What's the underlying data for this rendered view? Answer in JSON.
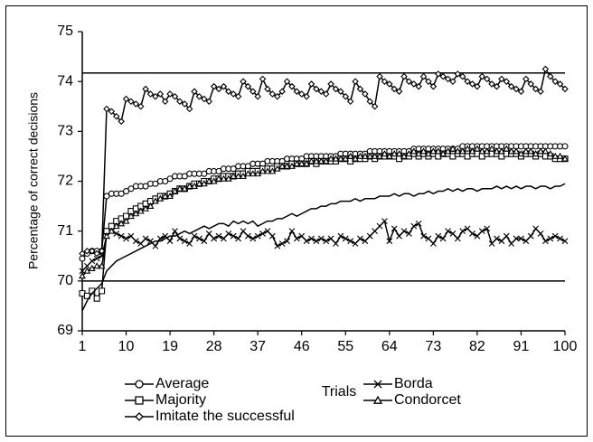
{
  "chart_data": {
    "type": "line",
    "y_label": "Percentage of correct decisions",
    "x_label": "Trials",
    "x": [
      1,
      2,
      3,
      4,
      5,
      6,
      7,
      8,
      9,
      10,
      11,
      12,
      13,
      14,
      15,
      16,
      17,
      18,
      19,
      20,
      21,
      22,
      23,
      24,
      25,
      26,
      27,
      28,
      29,
      30,
      31,
      32,
      33,
      34,
      35,
      36,
      37,
      38,
      39,
      40,
      41,
      42,
      43,
      44,
      45,
      46,
      47,
      48,
      49,
      50,
      51,
      52,
      53,
      54,
      55,
      56,
      57,
      58,
      59,
      60,
      61,
      62,
      63,
      64,
      65,
      66,
      67,
      68,
      69,
      70,
      71,
      72,
      73,
      74,
      75,
      76,
      77,
      78,
      79,
      80,
      81,
      82,
      83,
      84,
      85,
      86,
      87,
      88,
      89,
      90,
      91,
      92,
      93,
      94,
      95,
      96,
      97,
      98,
      99,
      100
    ],
    "xlim": [
      1,
      100
    ],
    "xticks": [
      1,
      10,
      19,
      28,
      37,
      46,
      55,
      64,
      73,
      82,
      91,
      100
    ],
    "ylim": [
      69,
      75
    ],
    "yticks": [
      69,
      70,
      71,
      72,
      73,
      74,
      75
    ],
    "hlines": [
      74.17,
      70
    ],
    "series": [
      {
        "name": "Average",
        "marker": "circle",
        "color": "#000000",
        "values": [
          70.45,
          70.55,
          70.6,
          70.6,
          70.6,
          71.7,
          71.75,
          71.75,
          71.75,
          71.8,
          71.85,
          71.9,
          71.9,
          71.9,
          71.95,
          71.95,
          72.0,
          72.0,
          72.05,
          72.1,
          72.1,
          72.1,
          72.15,
          72.15,
          72.15,
          72.15,
          72.2,
          72.2,
          72.2,
          72.25,
          72.25,
          72.25,
          72.3,
          72.3,
          72.3,
          72.35,
          72.35,
          72.35,
          72.4,
          72.4,
          72.4,
          72.4,
          72.45,
          72.45,
          72.45,
          72.45,
          72.5,
          72.5,
          72.5,
          72.5,
          72.5,
          72.5,
          72.5,
          72.55,
          72.55,
          72.55,
          72.55,
          72.55,
          72.55,
          72.6,
          72.6,
          72.6,
          72.6,
          72.6,
          72.6,
          72.6,
          72.6,
          72.6,
          72.65,
          72.65,
          72.65,
          72.65,
          72.65,
          72.65,
          72.65,
          72.65,
          72.65,
          72.65,
          72.7,
          72.7,
          72.7,
          72.7,
          72.7,
          72.7,
          72.7,
          72.7,
          72.7,
          72.7,
          72.7,
          72.7,
          72.7,
          72.7,
          72.7,
          72.7,
          72.7,
          72.7,
          72.7,
          72.7,
          72.7,
          72.7
        ]
      },
      {
        "name": "Borda",
        "marker": "x",
        "color": "#000000",
        "values": [
          70.2,
          70.3,
          70.4,
          70.45,
          70.5,
          70.9,
          71.0,
          70.95,
          70.9,
          70.85,
          70.9,
          70.8,
          70.75,
          70.85,
          70.8,
          70.7,
          70.85,
          70.9,
          70.8,
          71.0,
          70.85,
          70.8,
          70.75,
          70.9,
          70.85,
          70.8,
          70.95,
          70.85,
          70.9,
          70.85,
          70.95,
          70.9,
          70.85,
          71.0,
          70.9,
          70.85,
          70.9,
          70.95,
          71.0,
          70.9,
          70.7,
          70.75,
          70.8,
          71.0,
          70.85,
          70.9,
          70.8,
          70.85,
          70.8,
          70.85,
          70.8,
          70.85,
          70.75,
          70.9,
          70.85,
          70.8,
          70.75,
          70.85,
          70.8,
          70.9,
          71.0,
          71.1,
          71.2,
          70.8,
          71.05,
          70.9,
          71.0,
          70.95,
          71.1,
          71.15,
          70.9,
          70.85,
          70.75,
          70.9,
          70.85,
          71.0,
          70.95,
          70.85,
          71.0,
          71.05,
          70.95,
          70.9,
          71.0,
          71.05,
          70.75,
          70.85,
          70.8,
          70.9,
          70.75,
          70.85,
          70.85,
          70.8,
          70.9,
          71.05,
          70.95,
          70.8,
          70.85,
          70.9,
          70.85,
          70.8
        ]
      },
      {
        "name": "Majority",
        "marker": "square",
        "color": "#000000",
        "values": [
          69.75,
          69.7,
          69.8,
          69.65,
          69.8,
          71.0,
          71.1,
          71.2,
          71.25,
          71.3,
          71.4,
          71.45,
          71.5,
          71.55,
          71.6,
          71.65,
          71.7,
          71.7,
          71.75,
          71.8,
          71.85,
          71.85,
          71.9,
          71.95,
          71.95,
          72.0,
          72.0,
          72.05,
          72.05,
          72.1,
          72.1,
          72.1,
          72.15,
          72.15,
          72.2,
          72.2,
          72.2,
          72.25,
          72.25,
          72.25,
          72.3,
          72.3,
          72.3,
          72.35,
          72.35,
          72.35,
          72.35,
          72.4,
          72.35,
          72.4,
          72.4,
          72.4,
          72.4,
          72.45,
          72.45,
          72.4,
          72.45,
          72.45,
          72.45,
          72.5,
          72.45,
          72.5,
          72.5,
          72.5,
          72.5,
          72.45,
          72.5,
          72.5,
          72.55,
          72.5,
          72.55,
          72.5,
          72.55,
          72.5,
          72.55,
          72.55,
          72.5,
          72.55,
          72.55,
          72.5,
          72.55,
          72.55,
          72.5,
          72.55,
          72.55,
          72.55,
          72.5,
          72.55,
          72.55,
          72.55,
          72.5,
          72.55,
          72.55,
          72.5,
          72.55,
          72.5,
          72.5,
          72.45,
          72.45,
          72.45
        ]
      },
      {
        "name": "Condorcet",
        "marker": "triangle",
        "color": "#000000",
        "values": [
          70.1,
          70.2,
          70.25,
          70.3,
          70.3,
          70.9,
          71.0,
          71.1,
          71.15,
          71.2,
          71.3,
          71.35,
          71.4,
          71.45,
          71.5,
          71.6,
          71.65,
          71.7,
          71.7,
          71.8,
          71.85,
          71.85,
          71.9,
          71.9,
          71.95,
          71.95,
          72.0,
          72.0,
          72.05,
          72.05,
          72.05,
          72.1,
          72.1,
          72.1,
          72.15,
          72.15,
          72.15,
          72.2,
          72.2,
          72.2,
          72.25,
          72.3,
          72.3,
          72.3,
          72.35,
          72.35,
          72.35,
          72.4,
          72.4,
          72.4,
          72.4,
          72.45,
          72.45,
          72.45,
          72.45,
          72.5,
          72.45,
          72.5,
          72.5,
          72.5,
          72.5,
          72.5,
          72.55,
          72.5,
          72.55,
          72.55,
          72.5,
          72.55,
          72.6,
          72.55,
          72.6,
          72.55,
          72.6,
          72.6,
          72.55,
          72.6,
          72.65,
          72.6,
          72.6,
          72.65,
          72.6,
          72.65,
          72.6,
          72.6,
          72.65,
          72.6,
          72.6,
          72.65,
          72.6,
          72.6,
          72.55,
          72.6,
          72.6,
          72.55,
          72.6,
          72.6,
          72.55,
          72.5,
          72.5,
          72.45
        ]
      },
      {
        "name": "Imitate the successful",
        "marker": "diamond",
        "color": "#000000",
        "values": [
          70.55,
          70.6,
          70.6,
          70.55,
          70.6,
          73.45,
          73.4,
          73.3,
          73.2,
          73.65,
          73.6,
          73.55,
          73.5,
          73.85,
          73.75,
          73.7,
          73.75,
          73.6,
          73.75,
          73.7,
          73.6,
          73.55,
          73.45,
          73.8,
          73.7,
          73.65,
          73.6,
          73.9,
          73.85,
          73.9,
          73.8,
          73.75,
          73.7,
          74.0,
          73.9,
          73.8,
          73.7,
          74.05,
          73.85,
          73.75,
          73.7,
          73.8,
          74.0,
          73.9,
          73.8,
          73.75,
          73.7,
          73.95,
          73.85,
          73.8,
          73.75,
          73.95,
          73.85,
          73.8,
          73.7,
          73.6,
          74.0,
          73.85,
          73.75,
          73.6,
          73.5,
          74.1,
          74.0,
          73.95,
          73.85,
          73.8,
          74.1,
          74.0,
          73.95,
          73.9,
          74.1,
          74.0,
          73.9,
          74.15,
          74.1,
          74.05,
          74.0,
          74.15,
          74.1,
          74.0,
          73.95,
          73.9,
          74.1,
          74.05,
          73.95,
          73.9,
          74.05,
          74.0,
          73.9,
          73.85,
          73.8,
          74.05,
          73.95,
          73.85,
          73.8,
          74.25,
          74.1,
          74.0,
          73.95,
          73.85
        ]
      },
      {
        "marker": "none",
        "color": "#000000",
        "values": [
          69.4,
          69.6,
          69.75,
          69.85,
          69.95,
          70.2,
          70.3,
          70.4,
          70.45,
          70.5,
          70.55,
          70.6,
          70.65,
          70.7,
          70.75,
          70.8,
          70.8,
          70.85,
          70.9,
          70.9,
          70.95,
          71.0,
          70.95,
          71.0,
          71.05,
          71.1,
          71.05,
          71.1,
          71.15,
          71.15,
          71.1,
          71.2,
          71.15,
          71.2,
          71.15,
          71.2,
          71.1,
          71.15,
          71.2,
          71.2,
          71.25,
          71.25,
          71.3,
          71.35,
          71.3,
          71.35,
          71.4,
          71.45,
          71.45,
          71.5,
          71.5,
          71.55,
          71.55,
          71.6,
          71.6,
          71.6,
          71.65,
          71.6,
          71.65,
          71.65,
          71.65,
          71.7,
          71.7,
          71.7,
          71.75,
          71.7,
          71.75,
          71.75,
          71.7,
          71.75,
          71.75,
          71.8,
          71.75,
          71.8,
          71.8,
          71.85,
          71.8,
          71.85,
          71.8,
          71.85,
          71.85,
          71.8,
          71.85,
          71.85,
          71.85,
          71.9,
          71.85,
          71.9,
          71.85,
          71.9,
          71.85,
          71.9,
          71.9,
          71.85,
          71.9,
          71.9,
          71.85,
          71.9,
          71.9,
          71.95
        ]
      }
    ]
  }
}
